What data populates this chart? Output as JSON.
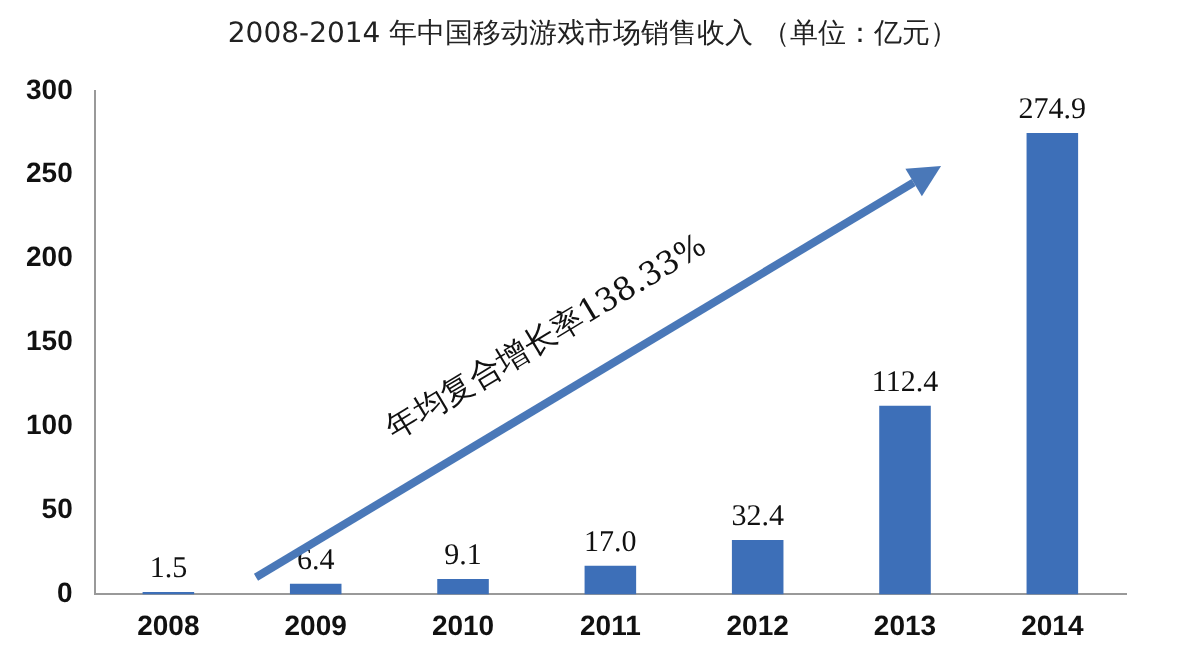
{
  "chart_data": {
    "type": "bar",
    "title": "2008-2014 年中国移动游戏市场销售收入 （单位：亿元）",
    "categories": [
      "2008",
      "2009",
      "2010",
      "2011",
      "2012",
      "2013",
      "2014"
    ],
    "values": [
      1.5,
      6.4,
      9.1,
      17.0,
      32.4,
      112.4,
      274.9
    ],
    "value_labels": [
      "1.5",
      "6.4",
      "9.1",
      "17.0",
      "32.4",
      "112.4",
      "274.9"
    ],
    "color": "#3d6fb8",
    "ylim": [
      0,
      300
    ],
    "yticks": [
      0,
      50,
      100,
      150,
      200,
      250,
      300
    ],
    "grid": false,
    "legend": false,
    "annotations": [
      "年均复合增长率138.33%"
    ]
  }
}
